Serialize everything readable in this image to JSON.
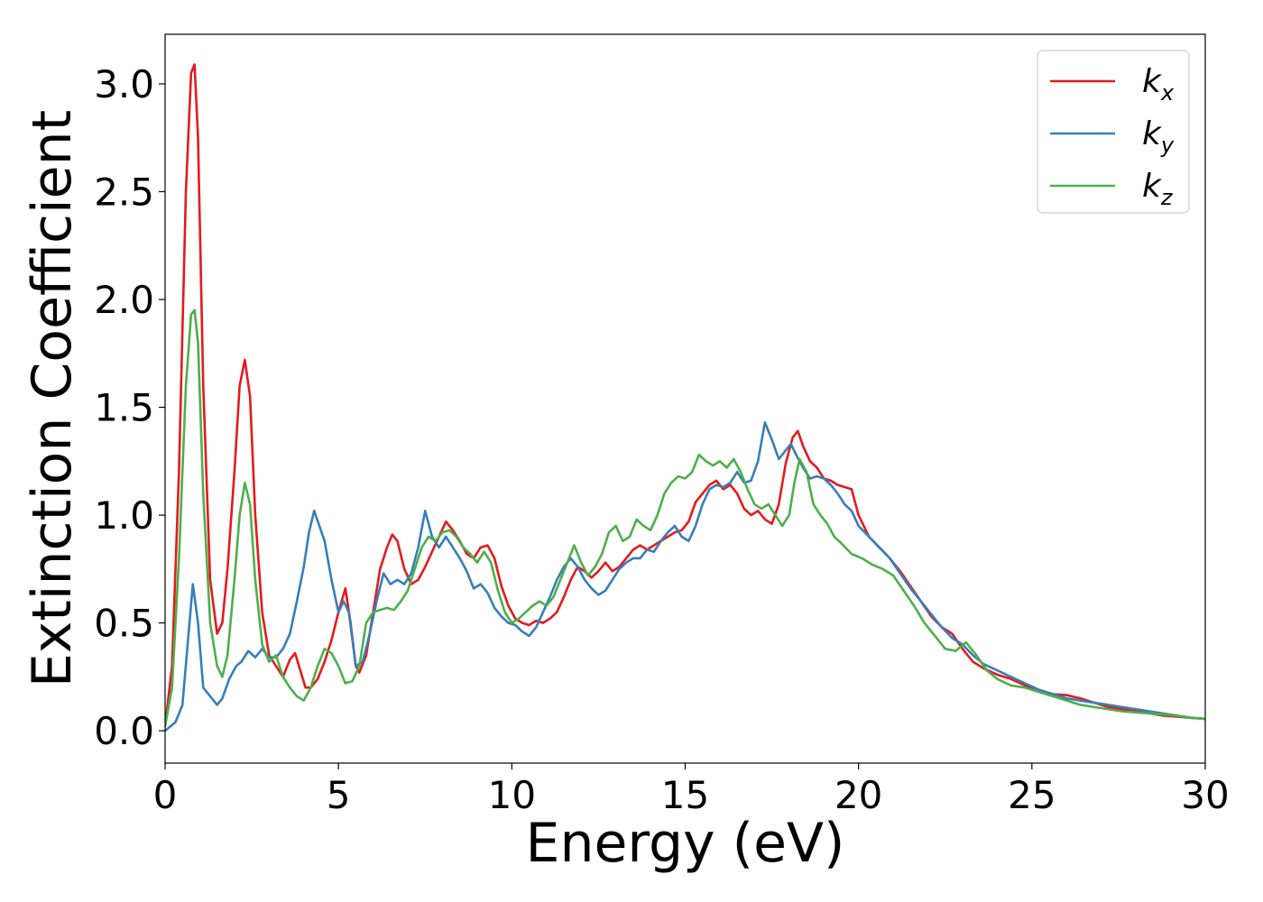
{
  "chart_data": {
    "type": "line",
    "title": "",
    "xlabel": "Energy (eV)",
    "ylabel": "Extinction Coefficient",
    "xlim": [
      0,
      30
    ],
    "ylim": [
      -0.15,
      3.23
    ],
    "xticks": [
      0,
      5,
      10,
      15,
      20,
      25,
      30
    ],
    "xtick_labels": [
      "0",
      "5",
      "10",
      "15",
      "20",
      "25",
      "30"
    ],
    "yticks": [
      0.0,
      0.5,
      1.0,
      1.5,
      2.0,
      2.5,
      3.0
    ],
    "ytick_labels": [
      "0.0",
      "0.5",
      "1.0",
      "1.5",
      "2.0",
      "2.5",
      "3.0"
    ],
    "grid": false,
    "legend_position": "top-right",
    "series": [
      {
        "name": "k",
        "subscript": "x",
        "color": "#e41a1c",
        "x": [
          0,
          0.2,
          0.4,
          0.6,
          0.75,
          0.85,
          0.95,
          1.1,
          1.3,
          1.5,
          1.65,
          1.8,
          2.0,
          2.15,
          2.3,
          2.45,
          2.6,
          2.8,
          3.0,
          3.2,
          3.4,
          3.6,
          3.75,
          3.9,
          4.05,
          4.2,
          4.4,
          4.6,
          4.8,
          5.0,
          5.2,
          5.35,
          5.5,
          5.6,
          5.8,
          6.0,
          6.2,
          6.4,
          6.55,
          6.7,
          6.9,
          7.1,
          7.3,
          7.5,
          7.7,
          7.9,
          8.1,
          8.3,
          8.5,
          8.7,
          8.9,
          9.1,
          9.3,
          9.5,
          9.7,
          9.9,
          10.1,
          10.3,
          10.5,
          10.7,
          10.9,
          11.1,
          11.3,
          11.5,
          11.7,
          11.9,
          12.1,
          12.3,
          12.5,
          12.7,
          12.9,
          13.1,
          13.3,
          13.5,
          13.7,
          13.9,
          14.1,
          14.3,
          14.5,
          14.7,
          14.9,
          15.1,
          15.3,
          15.5,
          15.7,
          15.9,
          16.1,
          16.3,
          16.5,
          16.7,
          16.9,
          17.1,
          17.3,
          17.5,
          17.7,
          17.9,
          18.1,
          18.25,
          18.4,
          18.6,
          18.8,
          19.0,
          19.2,
          19.4,
          19.6,
          19.8,
          20.0,
          20.3,
          20.6,
          20.9,
          21.2,
          21.5,
          21.8,
          22.1,
          22.4,
          22.7,
          23.0,
          23.3,
          23.6,
          24.0,
          24.4,
          24.8,
          25.2,
          25.6,
          26.0,
          26.4,
          26.8,
          27.2,
          27.6,
          28.0,
          28.4,
          28.8,
          29.2,
          29.6,
          30.0
        ],
        "y": [
          0.02,
          0.3,
          1.2,
          2.5,
          3.05,
          3.09,
          2.75,
          1.6,
          0.7,
          0.45,
          0.5,
          0.75,
          1.2,
          1.6,
          1.72,
          1.55,
          1.0,
          0.55,
          0.35,
          0.3,
          0.25,
          0.33,
          0.36,
          0.28,
          0.2,
          0.2,
          0.24,
          0.32,
          0.42,
          0.55,
          0.66,
          0.5,
          0.3,
          0.27,
          0.35,
          0.55,
          0.75,
          0.85,
          0.91,
          0.88,
          0.75,
          0.68,
          0.7,
          0.76,
          0.83,
          0.9,
          0.97,
          0.93,
          0.88,
          0.82,
          0.8,
          0.85,
          0.86,
          0.8,
          0.67,
          0.58,
          0.52,
          0.5,
          0.49,
          0.51,
          0.5,
          0.52,
          0.55,
          0.62,
          0.7,
          0.76,
          0.74,
          0.71,
          0.74,
          0.78,
          0.74,
          0.76,
          0.8,
          0.84,
          0.86,
          0.84,
          0.86,
          0.88,
          0.9,
          0.92,
          0.93,
          0.97,
          1.06,
          1.1,
          1.14,
          1.16,
          1.12,
          1.14,
          1.1,
          1.03,
          1.0,
          1.02,
          0.98,
          0.96,
          1.05,
          1.24,
          1.36,
          1.39,
          1.32,
          1.25,
          1.22,
          1.17,
          1.16,
          1.14,
          1.13,
          1.12,
          1.0,
          0.9,
          0.85,
          0.8,
          0.74,
          0.67,
          0.6,
          0.53,
          0.48,
          0.45,
          0.38,
          0.32,
          0.29,
          0.26,
          0.24,
          0.21,
          0.19,
          0.17,
          0.165,
          0.15,
          0.13,
          0.11,
          0.1,
          0.09,
          0.08,
          0.07,
          0.065,
          0.06,
          0.055
        ]
      },
      {
        "name": "k",
        "subscript": "y",
        "color": "#377eb8",
        "x": [
          0,
          0.3,
          0.5,
          0.65,
          0.8,
          0.95,
          1.1,
          1.3,
          1.5,
          1.65,
          1.85,
          2.05,
          2.2,
          2.4,
          2.6,
          2.8,
          3.0,
          3.2,
          3.4,
          3.6,
          3.8,
          4.0,
          4.15,
          4.3,
          4.45,
          4.6,
          4.8,
          5.0,
          5.15,
          5.3,
          5.5,
          5.7,
          5.9,
          6.1,
          6.3,
          6.5,
          6.7,
          6.9,
          7.1,
          7.3,
          7.5,
          7.7,
          7.9,
          8.1,
          8.3,
          8.5,
          8.7,
          8.9,
          9.1,
          9.3,
          9.5,
          9.7,
          9.9,
          10.1,
          10.3,
          10.5,
          10.7,
          10.9,
          11.1,
          11.3,
          11.5,
          11.7,
          11.9,
          12.1,
          12.3,
          12.5,
          12.7,
          12.9,
          13.1,
          13.3,
          13.5,
          13.7,
          13.9,
          14.1,
          14.3,
          14.5,
          14.7,
          14.9,
          15.1,
          15.3,
          15.5,
          15.7,
          15.9,
          16.1,
          16.3,
          16.5,
          16.7,
          16.9,
          17.1,
          17.3,
          17.5,
          17.7,
          17.9,
          18.05,
          18.2,
          18.4,
          18.6,
          18.8,
          19.0,
          19.2,
          19.4,
          19.6,
          19.8,
          20.0,
          20.3,
          20.6,
          20.9,
          21.2,
          21.5,
          21.8,
          22.1,
          22.4,
          22.7,
          23.0,
          23.3,
          23.6,
          24.0,
          24.4,
          24.8,
          25.2,
          25.6,
          26.0,
          26.4,
          26.8,
          27.2,
          27.6,
          28.0,
          28.4,
          28.8,
          29.2,
          29.6,
          30.0
        ],
        "y": [
          0.0,
          0.04,
          0.12,
          0.4,
          0.68,
          0.5,
          0.2,
          0.16,
          0.12,
          0.15,
          0.24,
          0.3,
          0.32,
          0.37,
          0.34,
          0.38,
          0.34,
          0.34,
          0.38,
          0.45,
          0.6,
          0.76,
          0.92,
          1.02,
          0.95,
          0.88,
          0.7,
          0.55,
          0.6,
          0.55,
          0.3,
          0.32,
          0.45,
          0.6,
          0.73,
          0.68,
          0.7,
          0.68,
          0.73,
          0.85,
          1.02,
          0.9,
          0.85,
          0.9,
          0.85,
          0.8,
          0.74,
          0.66,
          0.68,
          0.64,
          0.57,
          0.53,
          0.5,
          0.49,
          0.46,
          0.44,
          0.48,
          0.55,
          0.62,
          0.7,
          0.76,
          0.8,
          0.76,
          0.7,
          0.66,
          0.63,
          0.65,
          0.7,
          0.75,
          0.78,
          0.8,
          0.8,
          0.84,
          0.83,
          0.88,
          0.92,
          0.95,
          0.9,
          0.88,
          0.95,
          1.05,
          1.12,
          1.14,
          1.13,
          1.15,
          1.2,
          1.15,
          1.16,
          1.25,
          1.43,
          1.35,
          1.26,
          1.3,
          1.33,
          1.28,
          1.22,
          1.17,
          1.18,
          1.17,
          1.14,
          1.1,
          1.05,
          1.02,
          0.95,
          0.9,
          0.85,
          0.8,
          0.73,
          0.66,
          0.6,
          0.54,
          0.48,
          0.43,
          0.4,
          0.35,
          0.31,
          0.28,
          0.25,
          0.22,
          0.19,
          0.17,
          0.15,
          0.14,
          0.13,
          0.12,
          0.11,
          0.1,
          0.09,
          0.08,
          0.07,
          0.06,
          0.055
        ]
      },
      {
        "name": "k",
        "subscript": "z",
        "color": "#4daf4a",
        "x": [
          0,
          0.2,
          0.4,
          0.6,
          0.75,
          0.85,
          0.95,
          1.1,
          1.3,
          1.5,
          1.65,
          1.8,
          2.0,
          2.15,
          2.3,
          2.45,
          2.6,
          2.8,
          3.0,
          3.2,
          3.4,
          3.6,
          3.8,
          4.0,
          4.2,
          4.4,
          4.6,
          4.8,
          5.0,
          5.2,
          5.4,
          5.6,
          5.8,
          6.0,
          6.2,
          6.4,
          6.6,
          6.8,
          7.0,
          7.2,
          7.4,
          7.6,
          7.8,
          8.0,
          8.2,
          8.4,
          8.6,
          8.8,
          9.0,
          9.2,
          9.4,
          9.6,
          9.8,
          10.0,
          10.2,
          10.4,
          10.6,
          10.8,
          11.0,
          11.2,
          11.4,
          11.6,
          11.8,
          12.0,
          12.2,
          12.4,
          12.6,
          12.8,
          13.0,
          13.2,
          13.4,
          13.6,
          13.8,
          14.0,
          14.2,
          14.4,
          14.6,
          14.8,
          15.0,
          15.2,
          15.4,
          15.6,
          15.8,
          16.0,
          16.2,
          16.4,
          16.6,
          16.8,
          17.0,
          17.2,
          17.4,
          17.6,
          17.8,
          18.0,
          18.15,
          18.3,
          18.5,
          18.7,
          18.9,
          19.1,
          19.3,
          19.5,
          19.8,
          20.1,
          20.4,
          20.7,
          21.0,
          21.3,
          21.6,
          21.9,
          22.2,
          22.5,
          22.8,
          23.1,
          23.4,
          23.7,
          24.0,
          24.4,
          24.8,
          25.2,
          25.6,
          26.0,
          26.4,
          26.8,
          27.2,
          27.6,
          28.0,
          28.4,
          28.8,
          29.2,
          29.6,
          30.0
        ],
        "y": [
          0.02,
          0.2,
          0.8,
          1.6,
          1.93,
          1.95,
          1.8,
          1.1,
          0.5,
          0.3,
          0.25,
          0.35,
          0.7,
          1.0,
          1.15,
          1.05,
          0.7,
          0.4,
          0.32,
          0.35,
          0.25,
          0.2,
          0.16,
          0.14,
          0.2,
          0.3,
          0.38,
          0.36,
          0.3,
          0.22,
          0.23,
          0.3,
          0.5,
          0.55,
          0.56,
          0.57,
          0.56,
          0.6,
          0.65,
          0.75,
          0.85,
          0.9,
          0.88,
          0.92,
          0.93,
          0.9,
          0.85,
          0.82,
          0.78,
          0.83,
          0.78,
          0.65,
          0.55,
          0.5,
          0.52,
          0.55,
          0.58,
          0.6,
          0.58,
          0.62,
          0.7,
          0.78,
          0.86,
          0.78,
          0.72,
          0.76,
          0.82,
          0.92,
          0.95,
          0.88,
          0.9,
          0.98,
          0.95,
          0.93,
          1.0,
          1.1,
          1.15,
          1.18,
          1.17,
          1.2,
          1.28,
          1.25,
          1.23,
          1.25,
          1.22,
          1.26,
          1.2,
          1.12,
          1.05,
          1.03,
          1.05,
          1.0,
          0.95,
          1.0,
          1.15,
          1.26,
          1.2,
          1.05,
          1.0,
          0.96,
          0.9,
          0.87,
          0.82,
          0.8,
          0.77,
          0.75,
          0.72,
          0.65,
          0.58,
          0.5,
          0.44,
          0.38,
          0.37,
          0.41,
          0.35,
          0.28,
          0.24,
          0.21,
          0.2,
          0.18,
          0.16,
          0.14,
          0.12,
          0.11,
          0.1,
          0.09,
          0.085,
          0.08,
          0.075,
          0.07,
          0.06,
          0.055
        ]
      }
    ]
  }
}
